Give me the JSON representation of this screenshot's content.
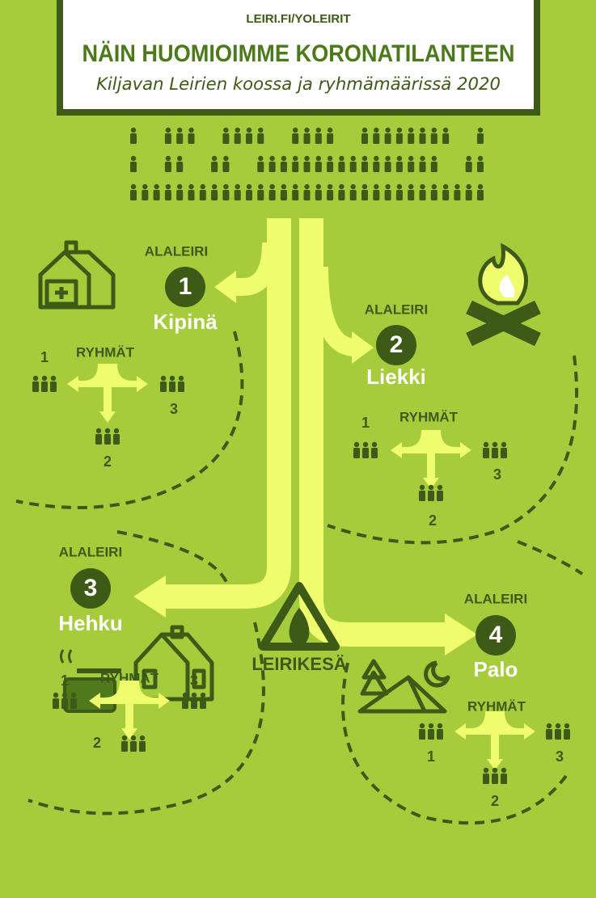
{
  "header": {
    "url": "LEIRI.FI/YOLEIRIT",
    "title": "NÄIN HUOMIOIMME KORONATILANTEEN",
    "subtitle": "Kiljavan Leirien koossa ja ryhmämäärissä 2020"
  },
  "subcamps": [
    {
      "label": "ALALEIRI",
      "number": "1",
      "name": "Kipinä",
      "groups_label": "RYHMÄT",
      "groups": [
        "1",
        "2",
        "3"
      ]
    },
    {
      "label": "ALALEIRI",
      "number": "2",
      "name": "Liekki",
      "groups_label": "RYHMÄT",
      "groups": [
        "1",
        "2",
        "3"
      ]
    },
    {
      "label": "ALALEIRI",
      "number": "3",
      "name": "Hehku",
      "groups_label": "RYHMÄT",
      "groups": [
        "1",
        "2",
        "3"
      ]
    },
    {
      "label": "ALALEIRI",
      "number": "4",
      "name": "Palo",
      "groups_label": "RYHMÄT",
      "groups": [
        "1",
        "2",
        "3"
      ]
    }
  ],
  "logo": "LEIRIKESÄ"
}
